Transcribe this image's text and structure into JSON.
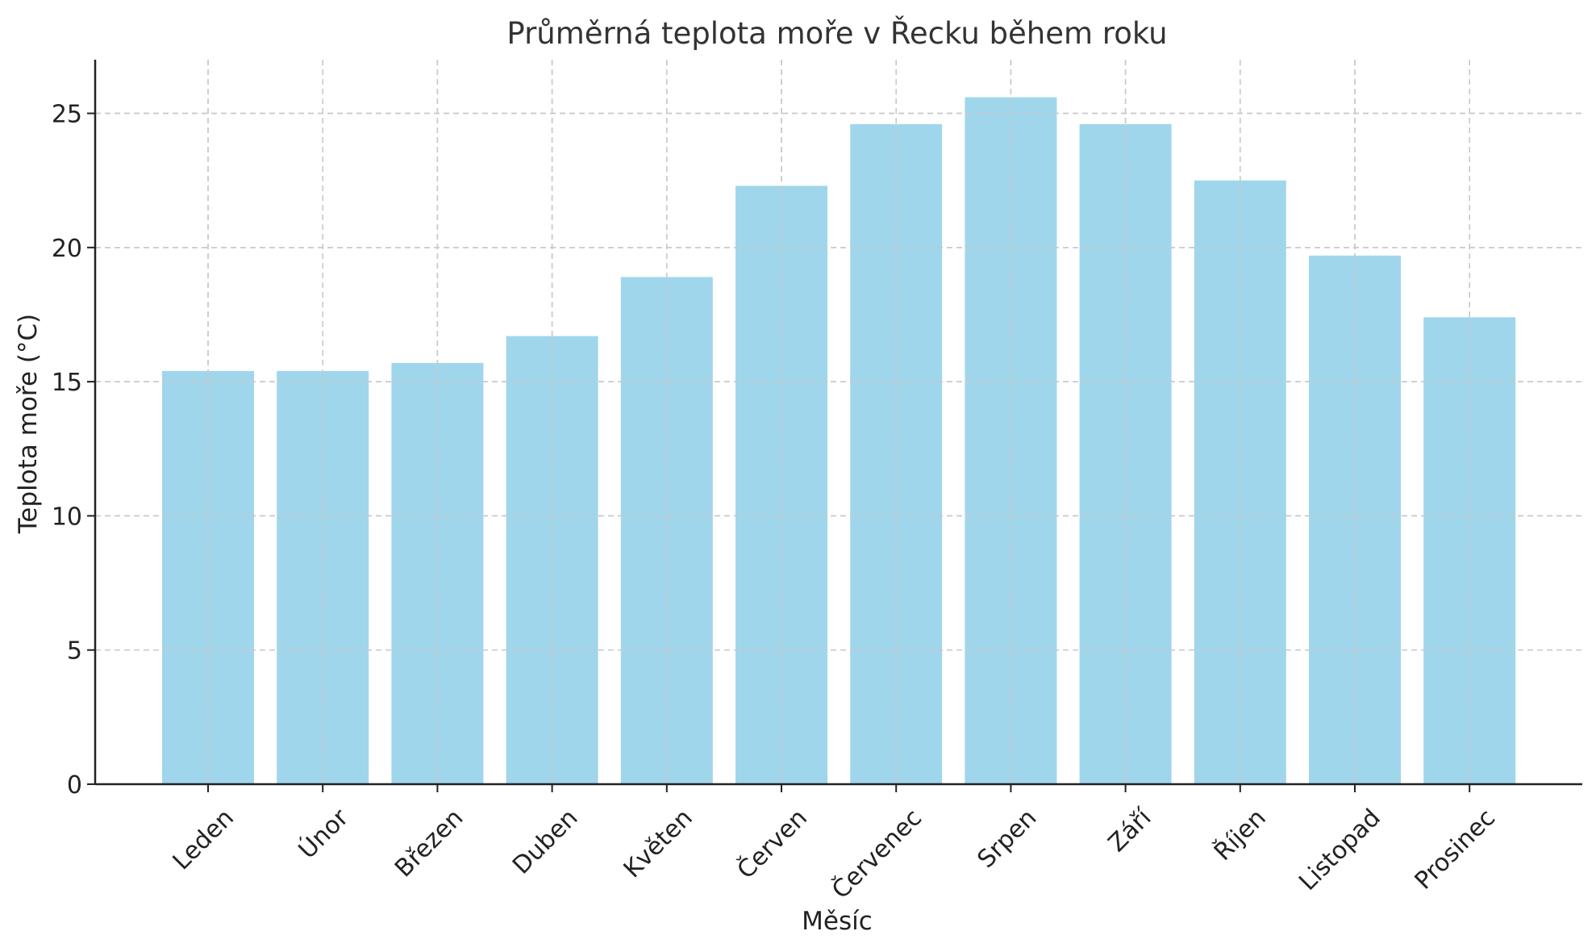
{
  "chart_data": {
    "type": "bar",
    "title": "Průměrná teplota moře v Řecku během roku",
    "xlabel": "Měsíc",
    "ylabel": "Teplota moře (°C)",
    "categories": [
      "Leden",
      "Únor",
      "Březen",
      "Duben",
      "Květen",
      "Červen",
      "Červenec",
      "Srpen",
      "Září",
      "Říjen",
      "Listopad",
      "Prosinec"
    ],
    "values": [
      15.4,
      15.4,
      15.7,
      16.7,
      18.9,
      22.3,
      24.6,
      25.6,
      24.6,
      22.5,
      19.7,
      17.4
    ],
    "ylim": [
      0,
      27
    ],
    "yticks": [
      0,
      5,
      10,
      15,
      20,
      25
    ],
    "grid": true,
    "bar_color": "#a0d6ec"
  }
}
